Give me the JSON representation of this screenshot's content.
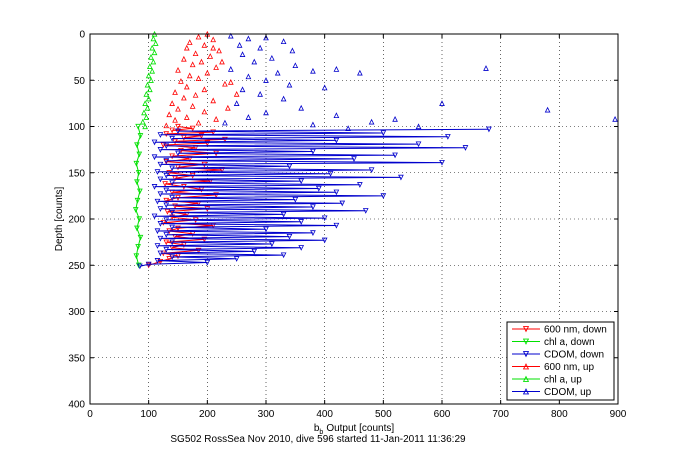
{
  "chart_data": {
    "type": "scatter",
    "title": "",
    "caption": "SG502 RossSea Nov 2010, dive 596 started 11-Jan-2011 11:36:29",
    "xlabel": "Output [counts]",
    "xlabel_main": "b",
    "xlabel_sub": "b",
    "ylabel": "Depth [counts]",
    "xlim": [
      0,
      900
    ],
    "ylim": [
      400,
      0
    ],
    "y_reversed": true,
    "grid": true,
    "grid_style": "dotted",
    "legend_position": "bottom-right",
    "x_ticks": [
      "0",
      "100",
      "200",
      "300",
      "400",
      "500",
      "600",
      "700",
      "800",
      "900"
    ],
    "y_ticks": [
      "0",
      "50",
      "100",
      "150",
      "200",
      "250",
      "300",
      "350",
      "400"
    ],
    "series": [
      {
        "name": "600 nm, down",
        "color": "#ff0000",
        "marker": "triangle-down",
        "line": true,
        "points": [
          [
            150,
            100
          ],
          [
            175,
            102
          ],
          [
            140,
            104
          ],
          [
            210,
            106
          ],
          [
            130,
            108
          ],
          [
            190,
            110
          ],
          [
            160,
            112
          ],
          [
            230,
            114
          ],
          [
            145,
            116
          ],
          [
            200,
            118
          ],
          [
            125,
            120
          ],
          [
            180,
            123
          ],
          [
            155,
            126
          ],
          [
            215,
            129
          ],
          [
            140,
            132
          ],
          [
            170,
            135
          ],
          [
            130,
            138
          ],
          [
            195,
            141
          ],
          [
            150,
            144
          ],
          [
            225,
            147
          ],
          [
            135,
            150
          ],
          [
            175,
            153
          ],
          [
            145,
            156
          ],
          [
            205,
            159
          ],
          [
            128,
            162
          ],
          [
            160,
            165
          ],
          [
            190,
            168
          ],
          [
            140,
            171
          ],
          [
            215,
            174
          ],
          [
            150,
            177
          ],
          [
            130,
            180
          ],
          [
            185,
            183
          ],
          [
            145,
            186
          ],
          [
            200,
            189
          ],
          [
            132,
            192
          ],
          [
            165,
            195
          ],
          [
            140,
            198
          ],
          [
            180,
            201
          ],
          [
            125,
            204
          ],
          [
            210,
            207
          ],
          [
            150,
            210
          ],
          [
            135,
            213
          ],
          [
            175,
            216
          ],
          [
            145,
            219
          ],
          [
            195,
            222
          ],
          [
            130,
            225
          ],
          [
            160,
            228
          ],
          [
            140,
            231
          ],
          [
            185,
            234
          ],
          [
            125,
            237
          ],
          [
            150,
            240
          ],
          [
            135,
            243
          ],
          [
            120,
            246
          ],
          [
            100,
            250
          ]
        ]
      },
      {
        "name": "chl a, down",
        "color": "#00e000",
        "marker": "triangle-down",
        "line": true,
        "points": [
          [
            82,
            100
          ],
          [
            86,
            110
          ],
          [
            80,
            120
          ],
          [
            84,
            130
          ],
          [
            79,
            140
          ],
          [
            83,
            150
          ],
          [
            80,
            160
          ],
          [
            85,
            170
          ],
          [
            81,
            180
          ],
          [
            78,
            190
          ],
          [
            84,
            200
          ],
          [
            80,
            210
          ],
          [
            86,
            220
          ],
          [
            82,
            230
          ],
          [
            79,
            240
          ],
          [
            83,
            250
          ]
        ]
      },
      {
        "name": "CDOM, down",
        "color": "#0000cc",
        "marker": "triangle-down",
        "line": true,
        "points": [
          [
            680,
            103
          ],
          [
            150,
            105
          ],
          [
            500,
            107
          ],
          [
            120,
            109
          ],
          [
            610,
            111
          ],
          [
            140,
            113
          ],
          [
            420,
            115
          ],
          [
            110,
            117
          ],
          [
            560,
            119
          ],
          [
            130,
            121
          ],
          [
            640,
            123
          ],
          [
            120,
            125
          ],
          [
            380,
            127
          ],
          [
            150,
            129
          ],
          [
            520,
            131
          ],
          [
            110,
            133
          ],
          [
            450,
            135
          ],
          [
            130,
            137
          ],
          [
            600,
            139
          ],
          [
            120,
            141
          ],
          [
            340,
            143
          ],
          [
            140,
            145
          ],
          [
            480,
            147
          ],
          [
            115,
            149
          ],
          [
            410,
            151
          ],
          [
            130,
            153
          ],
          [
            530,
            155
          ],
          [
            120,
            157
          ],
          [
            360,
            159
          ],
          [
            140,
            161
          ],
          [
            460,
            163
          ],
          [
            110,
            165
          ],
          [
            390,
            167
          ],
          [
            130,
            169
          ],
          [
            420,
            171
          ],
          [
            120,
            173
          ],
          [
            500,
            175
          ],
          [
            140,
            177
          ],
          [
            350,
            179
          ],
          [
            115,
            181
          ],
          [
            430,
            183
          ],
          [
            130,
            185
          ],
          [
            380,
            187
          ],
          [
            120,
            189
          ],
          [
            470,
            191
          ],
          [
            140,
            193
          ],
          [
            330,
            195
          ],
          [
            110,
            197
          ],
          [
            400,
            199
          ],
          [
            130,
            201
          ],
          [
            360,
            203
          ],
          [
            120,
            205
          ],
          [
            420,
            207
          ],
          [
            140,
            209
          ],
          [
            300,
            211
          ],
          [
            115,
            213
          ],
          [
            380,
            215
          ],
          [
            130,
            217
          ],
          [
            340,
            219
          ],
          [
            120,
            221
          ],
          [
            400,
            223
          ],
          [
            140,
            225
          ],
          [
            310,
            227
          ],
          [
            115,
            229
          ],
          [
            360,
            231
          ],
          [
            130,
            233
          ],
          [
            280,
            235
          ],
          [
            120,
            237
          ],
          [
            330,
            239
          ],
          [
            140,
            241
          ],
          [
            250,
            243
          ],
          [
            115,
            245
          ],
          [
            200,
            247
          ],
          [
            100,
            249
          ],
          [
            85,
            251
          ]
        ]
      },
      {
        "name": "600 nm, up",
        "color": "#ff0000",
        "marker": "triangle-up",
        "line": false,
        "points": [
          [
            200,
            0
          ],
          [
            185,
            3
          ],
          [
            210,
            6
          ],
          [
            170,
            9
          ],
          [
            195,
            12
          ],
          [
            165,
            15
          ],
          [
            220,
            18
          ],
          [
            180,
            21
          ],
          [
            205,
            24
          ],
          [
            160,
            27
          ],
          [
            190,
            30
          ],
          [
            175,
            33
          ],
          [
            215,
            36
          ],
          [
            150,
            39
          ],
          [
            200,
            42
          ],
          [
            170,
            45
          ],
          [
            185,
            48
          ],
          [
            155,
            51
          ],
          [
            230,
            54
          ],
          [
            165,
            57
          ],
          [
            195,
            60
          ],
          [
            145,
            63
          ],
          [
            180,
            66
          ],
          [
            160,
            69
          ],
          [
            210,
            72
          ],
          [
            140,
            75
          ],
          [
            175,
            78
          ],
          [
            150,
            81
          ],
          [
            195,
            84
          ],
          [
            135,
            87
          ],
          [
            165,
            90
          ],
          [
            145,
            93
          ],
          [
            185,
            96
          ],
          [
            130,
            99
          ],
          [
            240,
            52
          ],
          [
            225,
            30
          ],
          [
            210,
            15
          ],
          [
            250,
            65
          ],
          [
            235,
            80
          ],
          [
            215,
            92
          ]
        ]
      },
      {
        "name": "chl a, up",
        "color": "#00e000",
        "marker": "triangle-up",
        "line": false,
        "points": [
          [
            110,
            0
          ],
          [
            108,
            5
          ],
          [
            112,
            10
          ],
          [
            106,
            15
          ],
          [
            110,
            20
          ],
          [
            104,
            25
          ],
          [
            108,
            30
          ],
          [
            102,
            35
          ],
          [
            106,
            40
          ],
          [
            100,
            45
          ],
          [
            104,
            50
          ],
          [
            98,
            55
          ],
          [
            102,
            60
          ],
          [
            96,
            65
          ],
          [
            100,
            70
          ],
          [
            94,
            75
          ],
          [
            98,
            80
          ],
          [
            92,
            85
          ],
          [
            96,
            90
          ],
          [
            90,
            95
          ],
          [
            94,
            100
          ]
        ]
      },
      {
        "name": "CDOM, up",
        "color": "#0000cc",
        "marker": "triangle-up",
        "line": false,
        "points": [
          [
            240,
            2
          ],
          [
            270,
            5
          ],
          [
            300,
            4
          ],
          [
            330,
            8
          ],
          [
            255,
            12
          ],
          [
            290,
            15
          ],
          [
            345,
            18
          ],
          [
            260,
            22
          ],
          [
            310,
            26
          ],
          [
            280,
            30
          ],
          [
            350,
            34
          ],
          [
            240,
            38
          ],
          [
            320,
            42
          ],
          [
            270,
            46
          ],
          [
            380,
            40
          ],
          [
            420,
            38
          ],
          [
            460,
            42
          ],
          [
            300,
            50
          ],
          [
            340,
            55
          ],
          [
            260,
            60
          ],
          [
            400,
            58
          ],
          [
            290,
            65
          ],
          [
            330,
            70
          ],
          [
            250,
            75
          ],
          [
            360,
            80
          ],
          [
            300,
            85
          ],
          [
            270,
            90
          ],
          [
            420,
            88
          ],
          [
            480,
            95
          ],
          [
            520,
            92
          ],
          [
            600,
            75
          ],
          [
            675,
            37
          ],
          [
            780,
            82
          ],
          [
            895,
            92
          ],
          [
            560,
            100
          ],
          [
            440,
            102
          ],
          [
            380,
            98
          ],
          [
            230,
            96
          ]
        ]
      }
    ],
    "legend": [
      {
        "label": "600 nm, down",
        "color": "#ff0000",
        "marker": "triangle-down"
      },
      {
        "label": "chl a, down",
        "color": "#00e000",
        "marker": "triangle-down"
      },
      {
        "label": "CDOM, down",
        "color": "#0000cc",
        "marker": "triangle-down"
      },
      {
        "label": "600 nm, up",
        "color": "#ff0000",
        "marker": "triangle-up"
      },
      {
        "label": "chl a, up",
        "color": "#00e000",
        "marker": "triangle-up"
      },
      {
        "label": "CDOM, up",
        "color": "#0000cc",
        "marker": "triangle-up"
      }
    ]
  }
}
